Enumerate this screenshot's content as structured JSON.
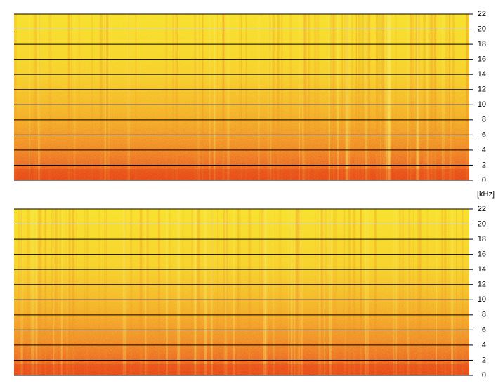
{
  "chart_data": [
    {
      "type": "spectrogram",
      "ylim": [
        0,
        22
      ],
      "yticks": [
        0,
        2,
        4,
        6,
        8,
        10,
        12,
        14,
        16,
        18,
        20,
        22
      ],
      "grid": true
    },
    {
      "type": "spectrogram",
      "ylim": [
        0,
        22
      ],
      "yticks": [
        0,
        2,
        4,
        6,
        8,
        10,
        12,
        14,
        16,
        18,
        20,
        22
      ],
      "grid": true,
      "ylabel": "[kHz]"
    }
  ]
}
